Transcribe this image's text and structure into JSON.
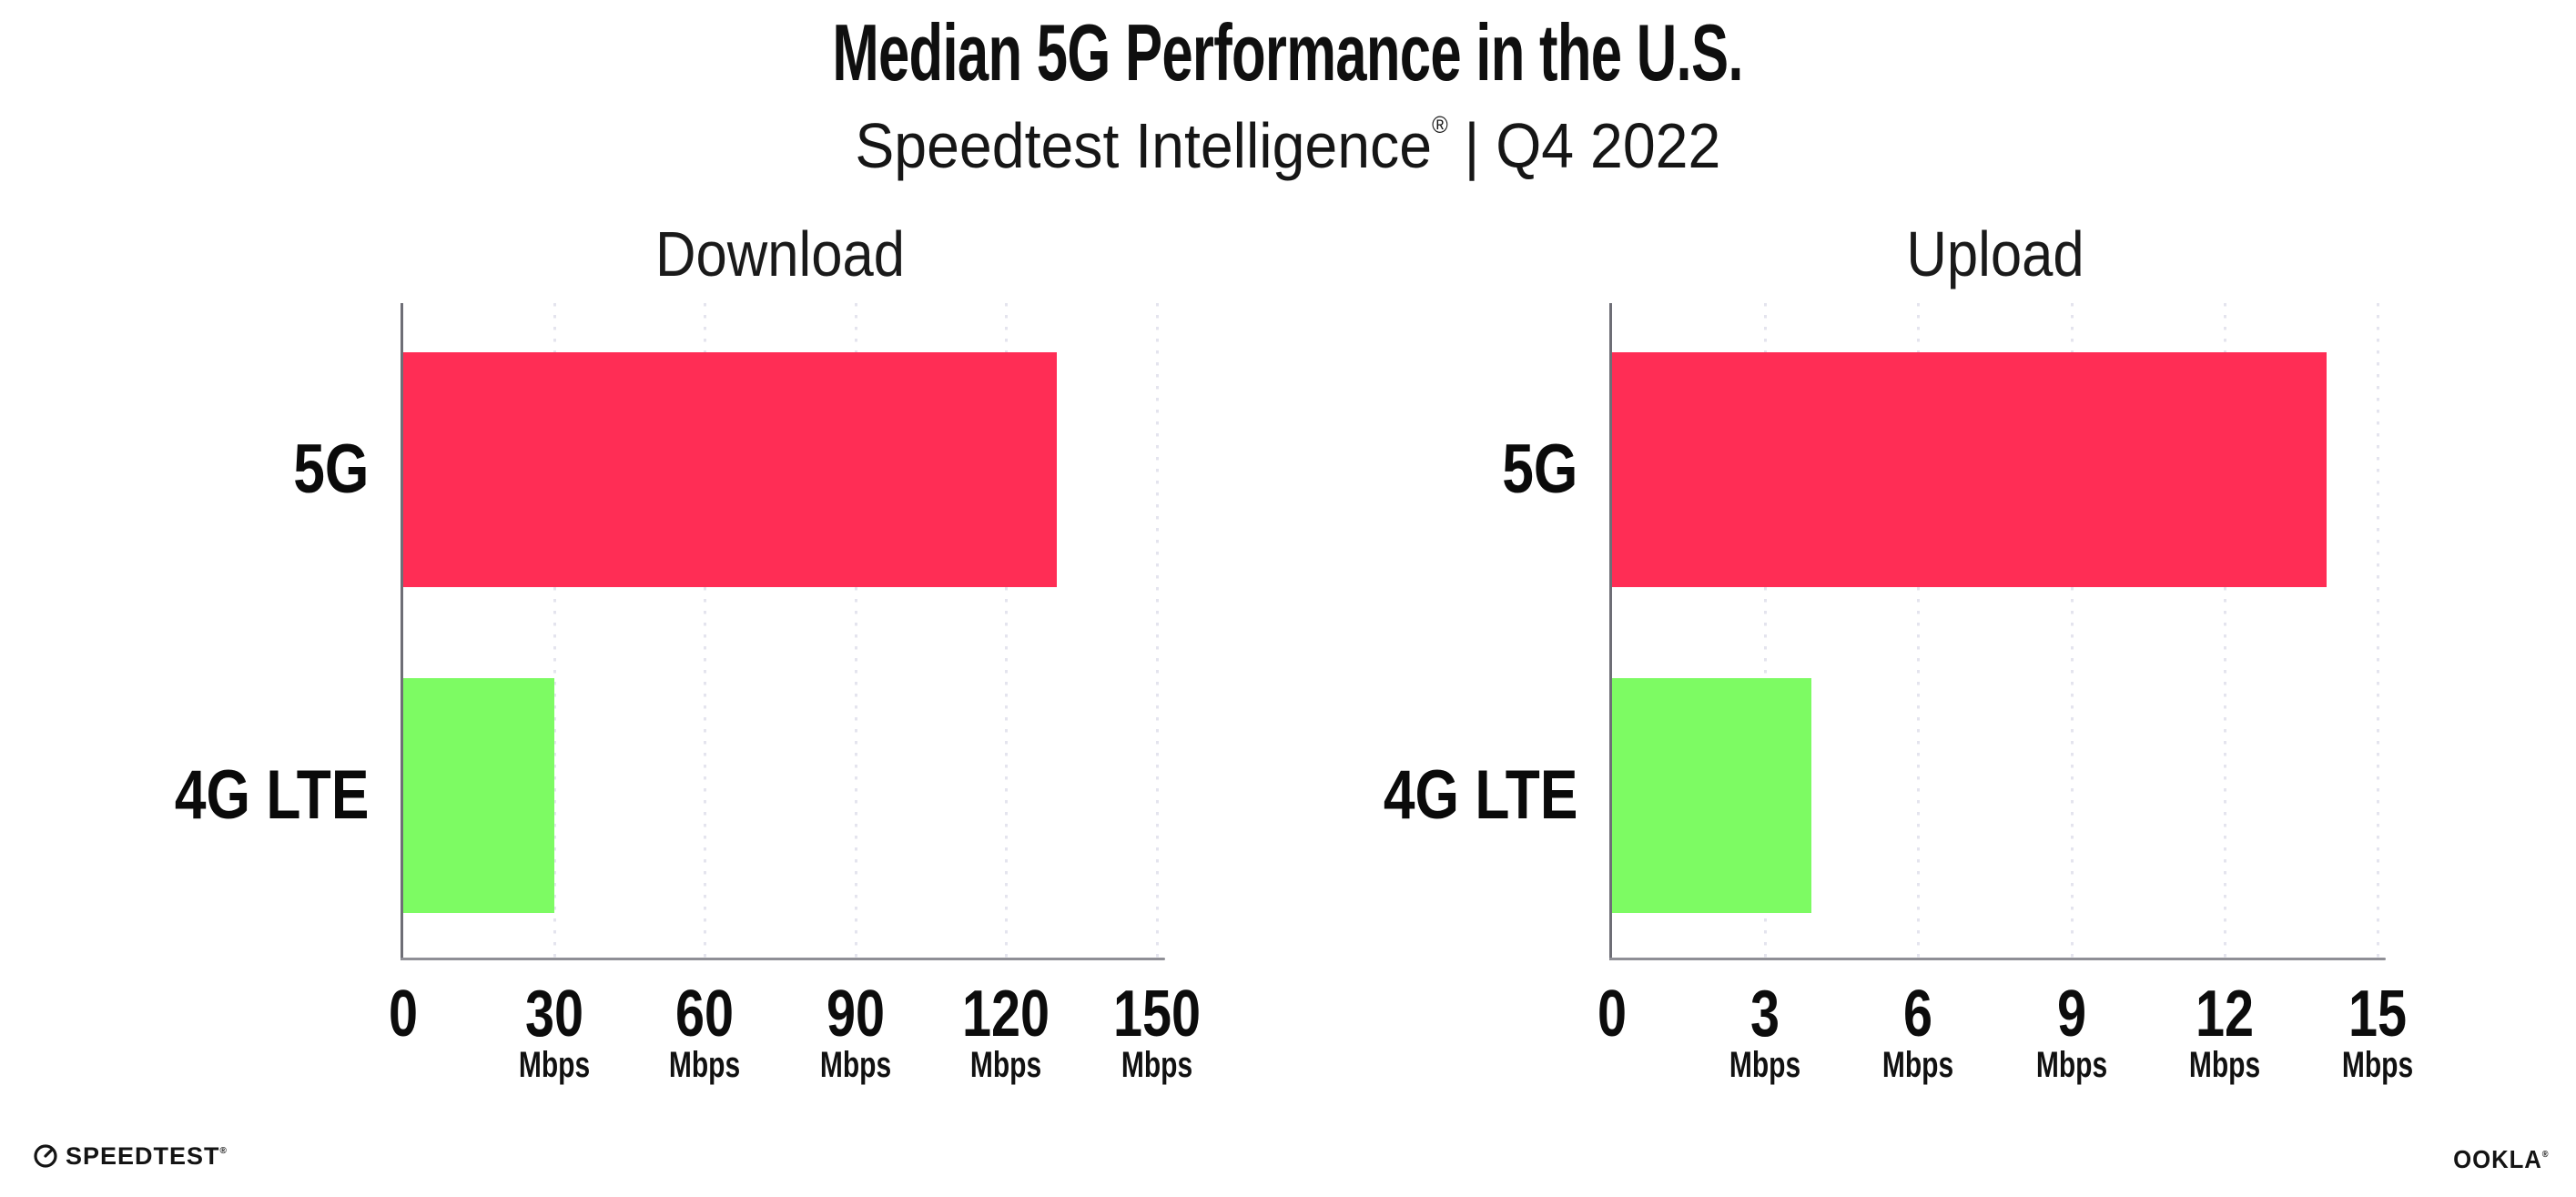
{
  "header": {
    "title": "Median 5G Performance in the U.S.",
    "subtitle_brand": "Speedtest Intelligence",
    "subtitle_mark": "®",
    "subtitle_rest": " | Q4 2022"
  },
  "footer": {
    "speedtest_label": "SPEEDTEST",
    "speedtest_mark": "®",
    "speedtest_icon": "gauge-icon",
    "ookla_label": "OOKLA",
    "ookla_mark": "®"
  },
  "chart_data": {
    "type": "bar",
    "orientation": "horizontal",
    "title": "Median 5G Performance in the U.S.",
    "subtitle": "Speedtest Intelligence® | Q4 2022",
    "categories": [
      "5G",
      "4G LTE"
    ],
    "panels": [
      {
        "title": "Download",
        "unit": "Mbps",
        "xlim": [
          0,
          150
        ],
        "xticks": [
          0,
          30,
          60,
          90,
          120,
          150
        ],
        "values": [
          130,
          30
        ]
      },
      {
        "title": "Upload",
        "unit": "Mbps",
        "xlim": [
          0,
          15
        ],
        "xticks": [
          0,
          3,
          6,
          9,
          12,
          15
        ],
        "values": [
          14,
          3.9
        ]
      }
    ],
    "colors": {
      "5G": "#FF2D55",
      "4G LTE": "#7DFB63"
    },
    "grid": "vertical-dotted",
    "legend": "none",
    "axis_color": "#8f8f96",
    "gridline_color": "#e4e4ee"
  }
}
